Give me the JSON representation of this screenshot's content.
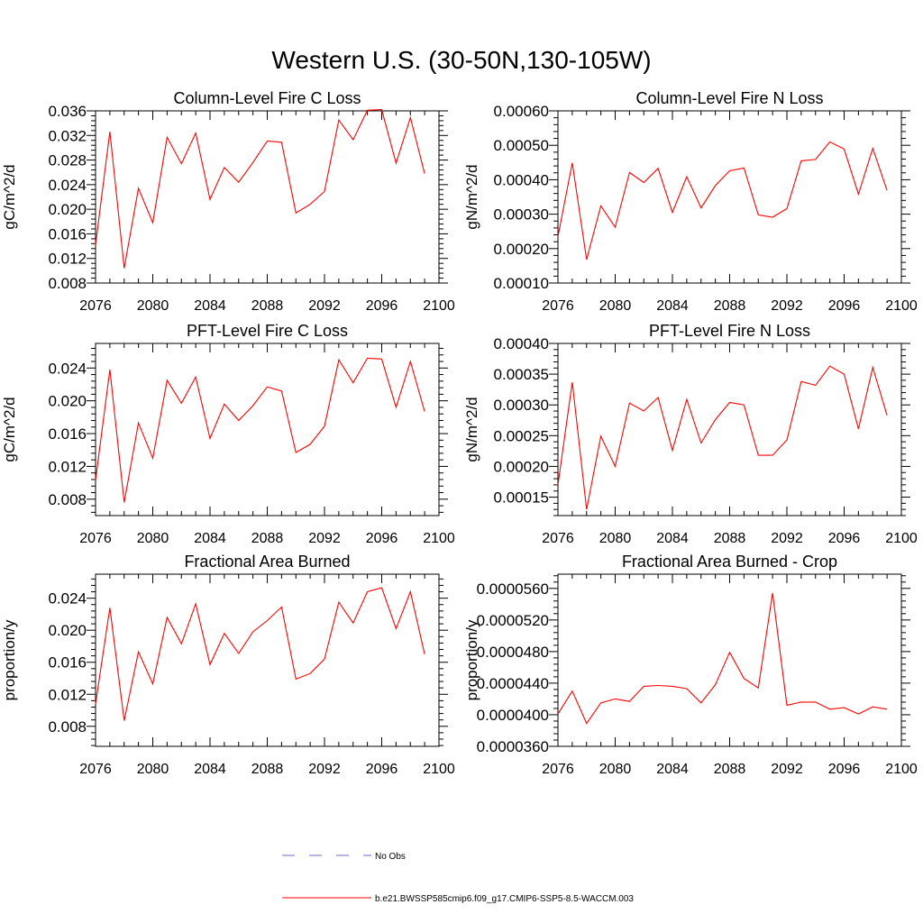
{
  "figure_title": "Western U.S. (30-50N,130-105W)",
  "colors": {
    "series": "#ff0000",
    "obs": "#6a6ac8",
    "axis": "#000000"
  },
  "legend": {
    "obs_label": "No Obs",
    "model_label": "b.e21.BWSSP585cmip6.f09_g17.CMIP6-SSP5-8.5-WACCM.003"
  },
  "chart_data": [
    {
      "type": "line",
      "title": "Column-Level Fire C Loss",
      "ylabel": "gC/m^2/d",
      "xlabel": "",
      "xlim": [
        2076,
        2100
      ],
      "ylim": [
        0.008,
        0.036
      ],
      "xticks": [
        2076,
        2080,
        2084,
        2088,
        2092,
        2096,
        2100
      ],
      "yticks": [
        0.008,
        0.012,
        0.016,
        0.02,
        0.024,
        0.028,
        0.032,
        0.036
      ],
      "ytick_labels": [
        "0.008",
        "0.012",
        "0.016",
        "0.020",
        "0.024",
        "0.028",
        "0.032",
        "0.036"
      ],
      "series": [
        {
          "name": "b.e21.BWSSP585cmip6.f09_g17.CMIP6-SSP5-8.5-WACCM.003",
          "x": [
            2076,
            2077,
            2078,
            2079,
            2080,
            2081,
            2082,
            2083,
            2084,
            2085,
            2086,
            2087,
            2088,
            2089,
            2090,
            2091,
            2092,
            2093,
            2094,
            2095,
            2096,
            2097,
            2098,
            2099
          ],
          "values": [
            0.0142,
            0.0326,
            0.0104,
            0.0234,
            0.0178,
            0.0317,
            0.0274,
            0.0324,
            0.0216,
            0.0268,
            0.0244,
            0.0276,
            0.0311,
            0.0309,
            0.0194,
            0.0208,
            0.0229,
            0.0345,
            0.0313,
            0.0361,
            0.0362,
            0.0275,
            0.0349,
            0.0258
          ]
        }
      ]
    },
    {
      "type": "line",
      "title": "Column-Level Fire N Loss",
      "ylabel": "gN/m^2/d",
      "xlabel": "",
      "xlim": [
        2076,
        2100
      ],
      "ylim": [
        0.0001,
        0.0006
      ],
      "xticks": [
        2076,
        2080,
        2084,
        2088,
        2092,
        2096,
        2100
      ],
      "yticks": [
        0.0001,
        0.0002,
        0.0003,
        0.0004,
        0.0005,
        0.0006
      ],
      "ytick_labels": [
        "0.00010",
        "0.00020",
        "0.00030",
        "0.00040",
        "0.00050",
        "0.00060"
      ],
      "series": [
        {
          "name": "b.e21.BWSSP585cmip6.f09_g17.CMIP6-SSP5-8.5-WACCM.003",
          "x": [
            2076,
            2077,
            2078,
            2079,
            2080,
            2081,
            2082,
            2083,
            2084,
            2085,
            2086,
            2087,
            2088,
            2089,
            2090,
            2091,
            2092,
            2093,
            2094,
            2095,
            2096,
            2097,
            2098,
            2099
          ],
          "values": [
            0.000235,
            0.000449,
            0.000168,
            0.000324,
            0.000262,
            0.000421,
            0.000392,
            0.000433,
            0.000305,
            0.000409,
            0.000318,
            0.000383,
            0.000426,
            0.000434,
            0.000298,
            0.000291,
            0.000316,
            0.000455,
            0.000459,
            0.00051,
            0.000489,
            0.000358,
            0.000491,
            0.000369
          ]
        }
      ]
    },
    {
      "type": "line",
      "title": "PFT-Level Fire C Loss",
      "ylabel": "gC/m^2/d",
      "xlabel": "",
      "xlim": [
        2076,
        2100
      ],
      "ylim": [
        0.006,
        0.027
      ],
      "xticks": [
        2076,
        2080,
        2084,
        2088,
        2092,
        2096,
        2100
      ],
      "yticks": [
        0.008,
        0.012,
        0.016,
        0.02,
        0.024
      ],
      "ytick_labels": [
        "0.008",
        "0.012",
        "0.016",
        "0.020",
        "0.024"
      ],
      "series": [
        {
          "name": "b.e21.BWSSP585cmip6.f09_g17.CMIP6-SSP5-8.5-WACCM.003",
          "x": [
            2076,
            2077,
            2078,
            2079,
            2080,
            2081,
            2082,
            2083,
            2084,
            2085,
            2086,
            2087,
            2088,
            2089,
            2090,
            2091,
            2092,
            2093,
            2094,
            2095,
            2096,
            2097,
            2098,
            2099
          ],
          "values": [
            0.0103,
            0.0238,
            0.0076,
            0.0173,
            0.013,
            0.0225,
            0.0197,
            0.0229,
            0.0154,
            0.0196,
            0.0176,
            0.0194,
            0.0217,
            0.0212,
            0.0137,
            0.0147,
            0.0169,
            0.025,
            0.0222,
            0.0252,
            0.0251,
            0.0192,
            0.0248,
            0.0187
          ]
        }
      ]
    },
    {
      "type": "line",
      "title": "PFT-Level Fire N Loss",
      "ylabel": "gN/m^2/d",
      "xlabel": "",
      "xlim": [
        2076,
        2100
      ],
      "ylim": [
        0.00012,
        0.0004
      ],
      "xticks": [
        2076,
        2080,
        2084,
        2088,
        2092,
        2096,
        2100
      ],
      "yticks": [
        0.00015,
        0.0002,
        0.00025,
        0.0003,
        0.00035,
        0.0004
      ],
      "ytick_labels": [
        "0.00015",
        "0.00020",
        "0.00025",
        "0.00030",
        "0.00035",
        "0.00040"
      ],
      "series": [
        {
          "name": "b.e21.BWSSP585cmip6.f09_g17.CMIP6-SSP5-8.5-WACCM.003",
          "x": [
            2076,
            2077,
            2078,
            2079,
            2080,
            2081,
            2082,
            2083,
            2084,
            2085,
            2086,
            2087,
            2088,
            2089,
            2090,
            2091,
            2092,
            2093,
            2094,
            2095,
            2096,
            2097,
            2098,
            2099
          ],
          "values": [
            0.00017,
            0.000337,
            0.00013,
            0.000249,
            0.0002,
            0.000303,
            0.00029,
            0.000312,
            0.000226,
            0.000309,
            0.000238,
            0.000276,
            0.000304,
            0.0003,
            0.000218,
            0.000218,
            0.000243,
            0.000338,
            0.000332,
            0.000363,
            0.00035,
            0.000261,
            0.000361,
            0.000283
          ]
        }
      ]
    },
    {
      "type": "line",
      "title": "Fractional Area Burned",
      "ylabel": "proportion/y",
      "xlabel": "",
      "xlim": [
        2076,
        2100
      ],
      "ylim": [
        0.0055,
        0.027
      ],
      "xticks": [
        2076,
        2080,
        2084,
        2088,
        2092,
        2096,
        2100
      ],
      "yticks": [
        0.008,
        0.012,
        0.016,
        0.02,
        0.024
      ],
      "ytick_labels": [
        "0.008",
        "0.012",
        "0.016",
        "0.020",
        "0.024"
      ],
      "series": [
        {
          "name": "b.e21.BWSSP585cmip6.f09_g17.CMIP6-SSP5-8.5-WACCM.003",
          "x": [
            2076,
            2077,
            2078,
            2079,
            2080,
            2081,
            2082,
            2083,
            2084,
            2085,
            2086,
            2087,
            2088,
            2089,
            2090,
            2091,
            2092,
            2093,
            2094,
            2095,
            2096,
            2097,
            2098,
            2099
          ],
          "values": [
            0.0108,
            0.0228,
            0.0087,
            0.0173,
            0.0133,
            0.0216,
            0.0183,
            0.0233,
            0.0157,
            0.0196,
            0.0171,
            0.0198,
            0.0212,
            0.0229,
            0.0139,
            0.0146,
            0.0164,
            0.0235,
            0.0209,
            0.0248,
            0.0253,
            0.0202,
            0.0248,
            0.017
          ]
        }
      ]
    },
    {
      "type": "line",
      "title": "Fractional Area Burned - Crop",
      "ylabel": "proportion/y",
      "xlabel": "",
      "xlim": [
        2076,
        2100
      ],
      "ylim": [
        3.6e-05,
        5.78e-05
      ],
      "xticks": [
        2076,
        2080,
        2084,
        2088,
        2092,
        2096,
        2100
      ],
      "yticks": [
        3.6e-05,
        4e-05,
        4.4e-05,
        4.8e-05,
        5.2e-05,
        5.6e-05
      ],
      "ytick_labels": [
        "0.0000360",
        "0.0000400",
        "0.0000440",
        "0.0000480",
        "0.0000520",
        "0.0000560"
      ],
      "series": [
        {
          "name": "b.e21.BWSSP585cmip6.f09_g17.CMIP6-SSP5-8.5-WACCM.003",
          "x": [
            2076,
            2077,
            2078,
            2079,
            2080,
            2081,
            2082,
            2083,
            2084,
            2085,
            2086,
            2087,
            2088,
            2089,
            2090,
            2091,
            2092,
            2093,
            2094,
            2095,
            2096,
            2097,
            2098,
            2099
          ],
          "values": [
            4.01e-05,
            4.3e-05,
            3.89e-05,
            4.15e-05,
            4.2e-05,
            4.17e-05,
            4.36e-05,
            4.37e-05,
            4.36e-05,
            4.33e-05,
            4.15e-05,
            4.38e-05,
            4.79e-05,
            4.46e-05,
            4.34e-05,
            5.54e-05,
            4.12e-05,
            4.16e-05,
            4.16e-05,
            4.07e-05,
            4.09e-05,
            4.01e-05,
            4.1e-05,
            4.07e-05
          ]
        }
      ]
    }
  ]
}
